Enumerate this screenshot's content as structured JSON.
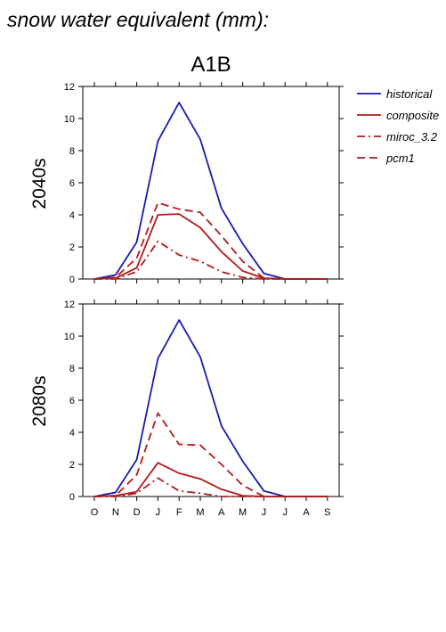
{
  "figure": {
    "title": "snow water equivalent (mm):",
    "scenario": "A1B"
  },
  "legend": [
    {
      "name": "historical",
      "color": "#1a1ab3",
      "dash": "solid"
    },
    {
      "name": "composite",
      "color": "#b31a1a",
      "dash": "solid"
    },
    {
      "name": "miroc_3.2",
      "color": "#b31a1a",
      "dash": "dashdot"
    },
    {
      "name": "pcm1",
      "color": "#b31a1a",
      "dash": "dashed"
    }
  ],
  "chart_data": [
    {
      "type": "line",
      "row_label": "2040s",
      "categories": [
        "O",
        "N",
        "D",
        "J",
        "F",
        "M",
        "A",
        "M",
        "J",
        "J",
        "A",
        "S"
      ],
      "ylim": [
        0,
        12
      ],
      "yticks": [
        0,
        2,
        4,
        6,
        8,
        10,
        12
      ],
      "series": [
        {
          "name": "historical",
          "values": [
            0,
            0.25,
            2.3,
            8.6,
            11.0,
            8.7,
            4.4,
            2.2,
            0.35,
            0,
            0,
            0
          ]
        },
        {
          "name": "composite",
          "values": [
            0,
            0.05,
            0.7,
            4.0,
            4.05,
            3.2,
            1.7,
            0.5,
            0.05,
            0,
            0,
            0
          ]
        },
        {
          "name": "miroc_3.2",
          "values": [
            0,
            0,
            0.45,
            2.35,
            1.5,
            1.1,
            0.45,
            0.1,
            0,
            0,
            0,
            0
          ]
        },
        {
          "name": "pcm1",
          "values": [
            0,
            0.1,
            1.3,
            4.75,
            4.35,
            4.15,
            2.7,
            1.1,
            0.05,
            0,
            0,
            0
          ]
        }
      ]
    },
    {
      "type": "line",
      "row_label": "2080s",
      "categories": [
        "O",
        "N",
        "D",
        "J",
        "F",
        "M",
        "A",
        "M",
        "J",
        "J",
        "A",
        "S"
      ],
      "ylim": [
        0,
        12
      ],
      "yticks": [
        0,
        2,
        4,
        6,
        8,
        10,
        12
      ],
      "series": [
        {
          "name": "historical",
          "values": [
            0,
            0.25,
            2.3,
            8.6,
            11.0,
            8.7,
            4.4,
            2.2,
            0.35,
            0,
            0,
            0
          ]
        },
        {
          "name": "composite",
          "values": [
            0,
            0.05,
            0.3,
            2.1,
            1.45,
            1.1,
            0.45,
            0.05,
            0,
            0,
            0,
            0
          ]
        },
        {
          "name": "miroc_3.2",
          "values": [
            0,
            0,
            0.2,
            1.15,
            0.35,
            0.2,
            0,
            0,
            0,
            0,
            0,
            0
          ]
        },
        {
          "name": "pcm1",
          "values": [
            0,
            0.05,
            1.35,
            5.2,
            3.25,
            3.2,
            2.0,
            0.7,
            0,
            0,
            0,
            0
          ]
        }
      ]
    }
  ]
}
